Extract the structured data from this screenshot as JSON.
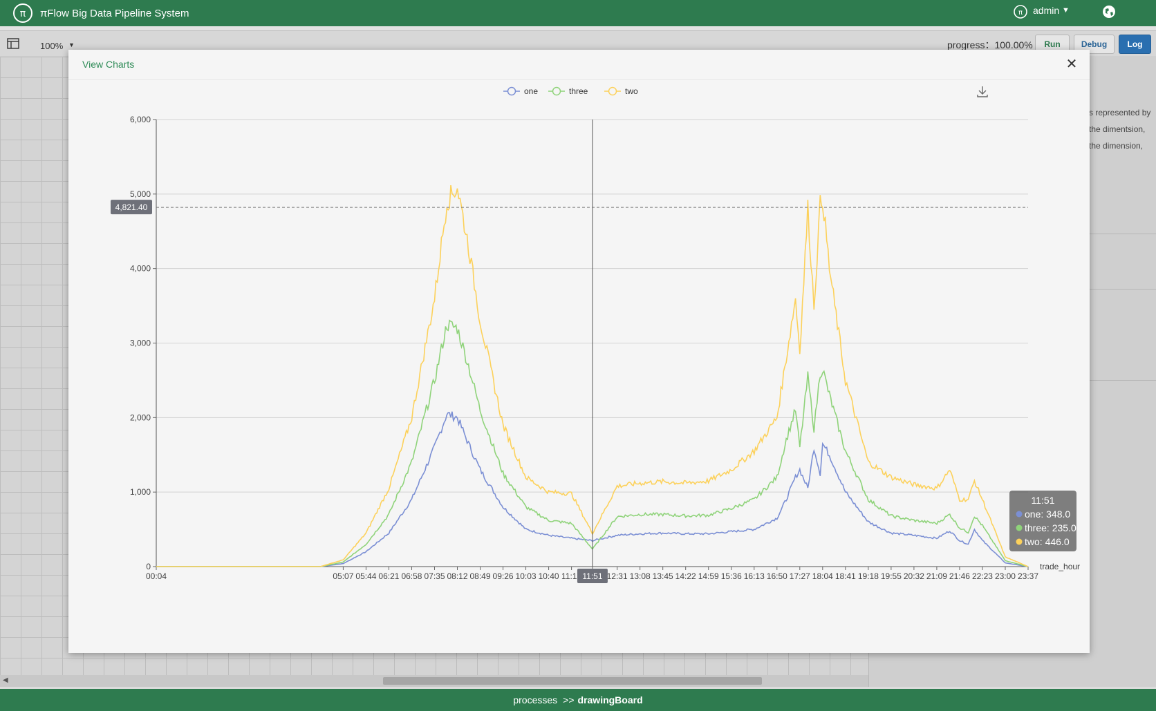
{
  "app": {
    "title": "πFlow Big Data Pipeline System",
    "user": "admin"
  },
  "toolbar": {
    "zoom": "100%",
    "progress_label": "progress：100.00%",
    "run": "Run",
    "debug": "Debug",
    "log": "Log"
  },
  "right_panel": {
    "lines": [
      "s represented by",
      "the dimentsion,",
      "the dimension,"
    ]
  },
  "modal": {
    "title": "View Charts"
  },
  "breadcrumb": {
    "first": "processes",
    "sep": ">>",
    "current": "drawingBoard"
  },
  "colors": {
    "one": "#7b8fd4",
    "three": "#8fd37a",
    "two": "#fcd15b",
    "brand": "#2e7b4f"
  },
  "icons": {
    "logo": "pi-flow-logo-icon",
    "user": "user-icon",
    "globe": "globe-icon",
    "panel": "panel-toggle-icon",
    "download": "download-icon",
    "close": "close-icon"
  },
  "chart_data": {
    "type": "line",
    "xlabel": "trade_hour",
    "ylabel": "",
    "ylim": [
      0,
      6000
    ],
    "yticks": [
      "0",
      "1,000",
      "2,000",
      "3,000",
      "4,000",
      "5,000",
      "6,000"
    ],
    "xticks": [
      "00:04",
      "05:07",
      "05:44",
      "06:21",
      "06:58",
      "07:35",
      "08:12",
      "08:49",
      "09:26",
      "10:03",
      "10:40",
      "11:17",
      "11:51",
      "12:31",
      "13:08",
      "13:45",
      "14:22",
      "14:59",
      "15:36",
      "16:13",
      "16:50",
      "17:27",
      "18:04",
      "18:41",
      "19:18",
      "19:55",
      "20:32",
      "21:09",
      "21:46",
      "22:23",
      "23:00",
      "23:37"
    ],
    "legend_position": "top-center",
    "x": [
      "00:04",
      "04:30",
      "05:07",
      "05:44",
      "06:21",
      "06:58",
      "07:35",
      "07:55",
      "08:12",
      "08:30",
      "08:49",
      "09:26",
      "10:03",
      "10:40",
      "11:17",
      "11:51",
      "12:31",
      "13:08",
      "13:45",
      "14:22",
      "14:59",
      "15:36",
      "16:13",
      "16:50",
      "17:05",
      "17:20",
      "17:27",
      "17:40",
      "17:50",
      "18:00",
      "18:04",
      "18:15",
      "18:41",
      "19:18",
      "19:55",
      "20:32",
      "21:09",
      "21:30",
      "21:46",
      "22:00",
      "22:10",
      "22:23",
      "23:00",
      "23:37"
    ],
    "series": [
      {
        "name": "one",
        "values": [
          0,
          0,
          40,
          200,
          450,
          900,
          1600,
          2050,
          2000,
          1650,
          1300,
          800,
          500,
          420,
          380,
          348,
          420,
          440,
          450,
          440,
          440,
          470,
          500,
          650,
          900,
          1200,
          1300,
          1050,
          1600,
          1250,
          1650,
          1500,
          1000,
          600,
          450,
          420,
          380,
          480,
          350,
          300,
          500,
          350,
          50,
          0
        ]
      },
      {
        "name": "three",
        "values": [
          0,
          0,
          60,
          300,
          700,
          1400,
          2500,
          3250,
          3200,
          2700,
          2100,
          1250,
          800,
          620,
          580,
          235,
          670,
          700,
          700,
          680,
          690,
          780,
          900,
          1200,
          1700,
          2100,
          1600,
          2550,
          1850,
          2600,
          2650,
          2300,
          1550,
          900,
          680,
          620,
          580,
          700,
          520,
          460,
          680,
          550,
          80,
          0
        ]
      },
      {
        "name": "two",
        "values": [
          0,
          0,
          90,
          450,
          1050,
          2000,
          3600,
          4900,
          5100,
          4300,
          3300,
          1900,
          1200,
          1000,
          980,
          446,
          1080,
          1120,
          1140,
          1120,
          1150,
          1300,
          1550,
          2000,
          2800,
          3600,
          2900,
          4800,
          3500,
          4850,
          4950,
          4000,
          2500,
          1400,
          1200,
          1100,
          1050,
          1300,
          900,
          900,
          1150,
          900,
          130,
          0
        ]
      }
    ],
    "crosshair": {
      "x": "11:51",
      "y": "4,821.40"
    },
    "tooltip": {
      "title": "11:51",
      "items": [
        {
          "name": "one",
          "value": "348.0"
        },
        {
          "name": "three",
          "value": "235.0"
        },
        {
          "name": "two",
          "value": "446.0"
        }
      ]
    }
  }
}
